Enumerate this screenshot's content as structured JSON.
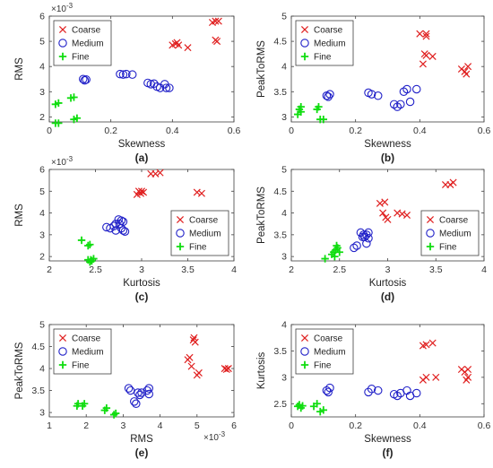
{
  "colors": {
    "Coarse": "#e02020",
    "Medium": "#2020c8",
    "Fine": "#10dd10",
    "axis": "#404040"
  },
  "chart_data": [
    {
      "type": "scatter",
      "panel_label": "(a)",
      "xlabel": "Skewness",
      "ylabel": "RMS",
      "y_exponent_label": "×10^-3",
      "xlim": [
        0,
        0.6
      ],
      "ylim": [
        1.8,
        6.0
      ],
      "xticks": [
        0,
        0.2,
        0.4,
        0.6
      ],
      "xticklabels": [
        "0",
        "0.2",
        "0.4",
        "0.6"
      ],
      "yticks": [
        2,
        3,
        4,
        5,
        6
      ],
      "yticklabels": [
        "2",
        "3",
        "4",
        "5",
        "6"
      ],
      "legend": "top-left",
      "series": [
        {
          "name": "Coarse",
          "marker": "x",
          "points": [
            [
              0.4,
              4.85
            ],
            [
              0.41,
              4.9
            ],
            [
              0.42,
              4.85
            ],
            [
              0.415,
              4.95
            ],
            [
              0.45,
              4.75
            ],
            [
              0.53,
              5.75
            ],
            [
              0.54,
              5.8
            ],
            [
              0.55,
              5.8
            ],
            [
              0.54,
              5.05
            ],
            [
              0.545,
              5.0
            ]
          ]
        },
        {
          "name": "Medium",
          "marker": "o",
          "points": [
            [
              0.11,
              3.5
            ],
            [
              0.12,
              3.48
            ],
            [
              0.115,
              3.45
            ],
            [
              0.23,
              3.7
            ],
            [
              0.24,
              3.68
            ],
            [
              0.25,
              3.7
            ],
            [
              0.27,
              3.68
            ],
            [
              0.32,
              3.35
            ],
            [
              0.33,
              3.3
            ],
            [
              0.34,
              3.32
            ],
            [
              0.35,
              3.2
            ],
            [
              0.36,
              3.15
            ],
            [
              0.375,
              3.3
            ],
            [
              0.38,
              3.15
            ],
            [
              0.39,
              3.15
            ]
          ]
        },
        {
          "name": "Fine",
          "marker": "+",
          "points": [
            [
              0.02,
              2.5
            ],
            [
              0.03,
              2.55
            ],
            [
              0.02,
              1.75
            ],
            [
              0.03,
              1.75
            ],
            [
              0.07,
              2.75
            ],
            [
              0.08,
              2.78
            ],
            [
              0.08,
              1.9
            ],
            [
              0.09,
              1.95
            ]
          ]
        }
      ]
    },
    {
      "type": "scatter",
      "panel_label": "(b)",
      "xlabel": "Skewness",
      "ylabel": "PeakToRMS",
      "xlim": [
        0,
        0.6
      ],
      "ylim": [
        2.9,
        5.0
      ],
      "xticks": [
        0,
        0.2,
        0.4,
        0.6
      ],
      "xticklabels": [
        "0",
        "0.2",
        "0.4",
        "0.6"
      ],
      "yticks": [
        3,
        3.5,
        4,
        4.5,
        5
      ],
      "yticklabels": [
        "3",
        "3.5",
        "4",
        "4.5",
        "5"
      ],
      "legend": "top-left",
      "series": [
        {
          "name": "Coarse",
          "marker": "x",
          "points": [
            [
              0.4,
              4.65
            ],
            [
              0.42,
              4.6
            ],
            [
              0.42,
              4.65
            ],
            [
              0.415,
              4.25
            ],
            [
              0.42,
              4.22
            ],
            [
              0.41,
              4.05
            ],
            [
              0.44,
              4.2
            ],
            [
              0.53,
              3.95
            ],
            [
              0.54,
              3.9
            ],
            [
              0.55,
              4.0
            ],
            [
              0.545,
              3.85
            ]
          ]
        },
        {
          "name": "Medium",
          "marker": "o",
          "points": [
            [
              0.11,
              3.42
            ],
            [
              0.12,
              3.45
            ],
            [
              0.115,
              3.4
            ],
            [
              0.24,
              3.48
            ],
            [
              0.25,
              3.45
            ],
            [
              0.27,
              3.42
            ],
            [
              0.32,
              3.25
            ],
            [
              0.33,
              3.2
            ],
            [
              0.34,
              3.25
            ],
            [
              0.35,
              3.5
            ],
            [
              0.36,
              3.55
            ],
            [
              0.37,
              3.3
            ],
            [
              0.39,
              3.55
            ]
          ]
        },
        {
          "name": "Fine",
          "marker": "+",
          "points": [
            [
              0.02,
              3.05
            ],
            [
              0.025,
              3.15
            ],
            [
              0.03,
              3.2
            ],
            [
              0.03,
              3.1
            ],
            [
              0.08,
              3.15
            ],
            [
              0.085,
              3.2
            ],
            [
              0.09,
              2.95
            ],
            [
              0.1,
              2.95
            ]
          ]
        }
      ]
    },
    {
      "type": "scatter",
      "panel_label": "(c)",
      "xlabel": "Kurtosis",
      "ylabel": "RMS",
      "y_exponent_label": "×10^-3",
      "xlim": [
        2,
        4
      ],
      "ylim": [
        1.8,
        6.0
      ],
      "xticks": [
        2,
        2.5,
        3,
        3.5,
        4
      ],
      "xticklabels": [
        "2",
        "2.5",
        "3",
        "3.5",
        "4"
      ],
      "yticks": [
        2,
        3,
        4,
        5,
        6
      ],
      "yticklabels": [
        "2",
        "3",
        "4",
        "5",
        "6"
      ],
      "legend": "bottom-right",
      "series": [
        {
          "name": "Coarse",
          "marker": "x",
          "points": [
            [
              2.95,
              4.85
            ],
            [
              2.97,
              5.0
            ],
            [
              2.99,
              4.9
            ],
            [
              3.0,
              5.0
            ],
            [
              3.02,
              4.95
            ],
            [
              3.1,
              5.8
            ],
            [
              3.15,
              5.8
            ],
            [
              3.2,
              5.85
            ],
            [
              3.6,
              4.95
            ],
            [
              3.65,
              4.9
            ]
          ]
        },
        {
          "name": "Medium",
          "marker": "o",
          "points": [
            [
              2.62,
              3.35
            ],
            [
              2.66,
              3.3
            ],
            [
              2.7,
              3.4
            ],
            [
              2.72,
              3.2
            ],
            [
              2.75,
              3.7
            ],
            [
              2.78,
              3.65
            ],
            [
              2.8,
              3.6
            ],
            [
              2.76,
              3.5
            ],
            [
              2.8,
              3.2
            ],
            [
              2.78,
              3.3
            ],
            [
              2.72,
              3.5
            ],
            [
              2.82,
              3.15
            ]
          ]
        },
        {
          "name": "Fine",
          "marker": "+",
          "points": [
            [
              2.35,
              2.75
            ],
            [
              2.42,
              2.5
            ],
            [
              2.44,
              2.55
            ],
            [
              2.42,
              1.85
            ],
            [
              2.45,
              1.85
            ],
            [
              2.48,
              1.9
            ],
            [
              2.44,
              1.75
            ],
            [
              2.46,
              1.8
            ]
          ]
        }
      ]
    },
    {
      "type": "scatter",
      "panel_label": "(d)",
      "xlabel": "Kurtosis",
      "ylabel": "PeakToRMS",
      "xlim": [
        2,
        4
      ],
      "ylim": [
        2.9,
        5.0
      ],
      "xticks": [
        2,
        2.5,
        3,
        3.5,
        4
      ],
      "xticklabels": [
        "2",
        "2.5",
        "3",
        "3.5",
        "4"
      ],
      "yticks": [
        3,
        3.5,
        4,
        4.5,
        5
      ],
      "yticklabels": [
        "3",
        "3.5",
        "4",
        "4.5",
        "5"
      ],
      "legend": "bottom-right",
      "series": [
        {
          "name": "Coarse",
          "marker": "x",
          "points": [
            [
              2.92,
              4.22
            ],
            [
              2.97,
              4.25
            ],
            [
              2.95,
              4.0
            ],
            [
              2.98,
              3.9
            ],
            [
              3.0,
              3.85
            ],
            [
              3.1,
              4.0
            ],
            [
              3.15,
              3.98
            ],
            [
              3.2,
              3.95
            ],
            [
              3.6,
              4.65
            ],
            [
              3.65,
              4.65
            ],
            [
              3.68,
              4.7
            ]
          ]
        },
        {
          "name": "Medium",
          "marker": "o",
          "points": [
            [
              2.65,
              3.2
            ],
            [
              2.68,
              3.25
            ],
            [
              2.72,
              3.55
            ],
            [
              2.75,
              3.5
            ],
            [
              2.78,
              3.5
            ],
            [
              2.8,
              3.55
            ],
            [
              2.76,
              3.45
            ],
            [
              2.74,
              3.45
            ],
            [
              2.8,
              3.42
            ],
            [
              2.78,
              3.3
            ]
          ]
        },
        {
          "name": "Fine",
          "marker": "+",
          "points": [
            [
              2.35,
              2.95
            ],
            [
              2.42,
              3.05
            ],
            [
              2.44,
              3.1
            ],
            [
              2.46,
              3.15
            ],
            [
              2.48,
              3.2
            ],
            [
              2.45,
              3.0
            ],
            [
              2.5,
              3.1
            ],
            [
              2.47,
              3.25
            ]
          ]
        }
      ]
    },
    {
      "type": "scatter",
      "panel_label": "(e)",
      "xlabel": "RMS",
      "x_exponent_label": "×10^-3",
      "ylabel": "PeakToRMS",
      "xlim": [
        1,
        6
      ],
      "ylim": [
        2.9,
        5.0
      ],
      "xticks": [
        1,
        2,
        3,
        4,
        5,
        6
      ],
      "xticklabels": [
        "1",
        "2",
        "3",
        "4",
        "5",
        "6"
      ],
      "yticks": [
        3,
        3.5,
        4,
        4.5,
        5
      ],
      "yticklabels": [
        "3",
        "3.5",
        "4",
        "4.5",
        "5"
      ],
      "legend": "top-left",
      "series": [
        {
          "name": "Coarse",
          "marker": "x",
          "points": [
            [
              4.75,
              4.2
            ],
            [
              4.8,
              4.25
            ],
            [
              4.85,
              4.05
            ],
            [
              4.9,
              4.65
            ],
            [
              4.95,
              4.6
            ],
            [
              4.92,
              4.7
            ],
            [
              5.0,
              3.85
            ],
            [
              5.05,
              3.9
            ],
            [
              5.75,
              4.0
            ],
            [
              5.8,
              3.98
            ],
            [
              5.85,
              4.0
            ]
          ]
        },
        {
          "name": "Medium",
          "marker": "o",
          "points": [
            [
              3.15,
              3.55
            ],
            [
              3.2,
              3.5
            ],
            [
              3.3,
              3.25
            ],
            [
              3.35,
              3.2
            ],
            [
              3.4,
              3.45
            ],
            [
              3.45,
              3.4
            ],
            [
              3.5,
              3.45
            ],
            [
              3.65,
              3.5
            ],
            [
              3.7,
              3.42
            ],
            [
              3.7,
              3.55
            ]
          ]
        },
        {
          "name": "Fine",
          "marker": "+",
          "points": [
            [
              1.75,
              3.15
            ],
            [
              1.78,
              3.2
            ],
            [
              1.9,
              3.15
            ],
            [
              1.95,
              3.2
            ],
            [
              2.5,
              3.05
            ],
            [
              2.55,
              3.1
            ],
            [
              2.75,
              2.95
            ],
            [
              2.8,
              2.98
            ]
          ]
        }
      ]
    },
    {
      "type": "scatter",
      "panel_label": "(f)",
      "xlabel": "Skewness",
      "ylabel": "Kurtosis",
      "xlim": [
        0,
        0.6
      ],
      "ylim": [
        2.25,
        4.0
      ],
      "xticks": [
        0,
        0.2,
        0.4,
        0.6
      ],
      "xticklabels": [
        "0",
        "0.2",
        "0.4",
        "0.6"
      ],
      "yticks": [
        2.5,
        3,
        3.5,
        4
      ],
      "yticklabels": [
        "2.5",
        "3",
        "3.5",
        "4"
      ],
      "legend": "top-left",
      "series": [
        {
          "name": "Coarse",
          "marker": "x",
          "points": [
            [
              0.41,
              3.6
            ],
            [
              0.42,
              3.62
            ],
            [
              0.44,
              3.65
            ],
            [
              0.41,
              2.95
            ],
            [
              0.42,
              3.0
            ],
            [
              0.45,
              3.0
            ],
            [
              0.53,
              3.15
            ],
            [
              0.54,
              3.1
            ],
            [
              0.55,
              3.0
            ],
            [
              0.545,
              2.95
            ],
            [
              0.55,
              3.15
            ]
          ]
        },
        {
          "name": "Medium",
          "marker": "o",
          "points": [
            [
              0.11,
              2.75
            ],
            [
              0.12,
              2.8
            ],
            [
              0.115,
              2.72
            ],
            [
              0.24,
              2.72
            ],
            [
              0.25,
              2.78
            ],
            [
              0.27,
              2.75
            ],
            [
              0.32,
              2.68
            ],
            [
              0.33,
              2.65
            ],
            [
              0.34,
              2.7
            ],
            [
              0.36,
              2.75
            ],
            [
              0.37,
              2.65
            ],
            [
              0.39,
              2.7
            ]
          ]
        },
        {
          "name": "Fine",
          "marker": "+",
          "points": [
            [
              0.02,
              2.45
            ],
            [
              0.025,
              2.48
            ],
            [
              0.03,
              2.42
            ],
            [
              0.035,
              2.46
            ],
            [
              0.07,
              2.45
            ],
            [
              0.08,
              2.5
            ],
            [
              0.09,
              2.35
            ],
            [
              0.1,
              2.38
            ]
          ]
        }
      ]
    }
  ]
}
